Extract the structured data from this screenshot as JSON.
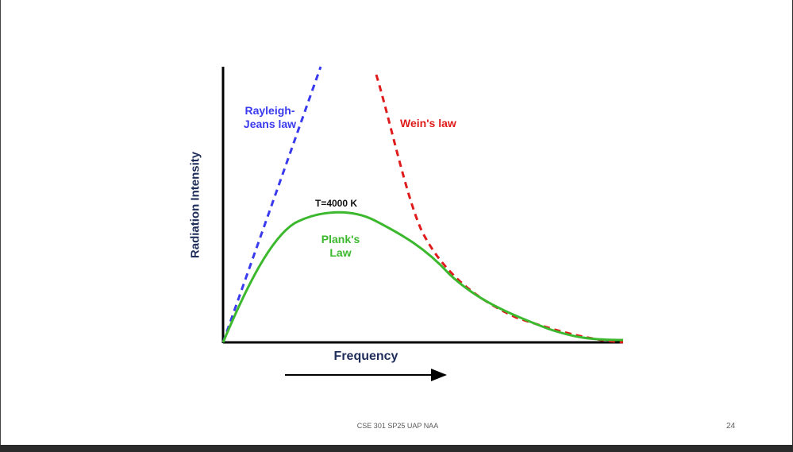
{
  "slide": {
    "footer": "CSE 301 SP25 UAP NAA",
    "page_number": "24"
  },
  "chart_data": {
    "type": "line",
    "xlabel": "Frequency",
    "ylabel": "Radiation Intensity",
    "annotations": {
      "temperature": "T=4000 K",
      "rayleigh_jeans": "Rayleigh-\nJeans law",
      "wein": "Wein's law",
      "plank": "Plank's\nLaw"
    },
    "series": [
      {
        "name": "Rayleigh-Jeans law",
        "color": "#3a3aee",
        "style": "dashed"
      },
      {
        "name": "Wein's law",
        "color": "#e01b1b",
        "style": "dashed"
      },
      {
        "name": "Plank's Law",
        "color": "#3cb82e",
        "style": "solid"
      }
    ],
    "arrow_direction": "right",
    "grid": false
  }
}
